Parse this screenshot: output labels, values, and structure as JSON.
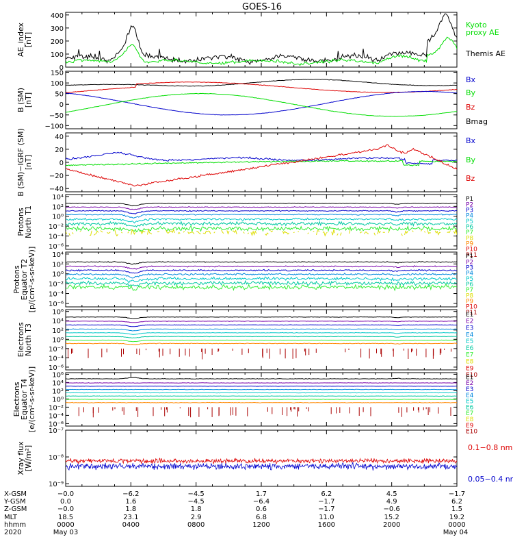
{
  "title": "GOES-16",
  "colors": {
    "black": "#000000",
    "green": "#00dd00",
    "blue": "#0000cc",
    "red": "#dd0000",
    "navy": "#000080",
    "purple": "#7700aa",
    "cyan": "#00c8c8",
    "teal": "#00c8a0",
    "lime": "#33ee33",
    "yellow": "#dddd00",
    "orange": "#ff8800",
    "darkred": "#aa0000"
  },
  "chart_data": [
    {
      "type": "line",
      "ylabel": "AE_index\n[nT]",
      "yticks": [
        0,
        100,
        200,
        300,
        400
      ],
      "ytick_labels": [
        "0",
        "100",
        "200",
        "300",
        "400"
      ],
      "ylim": [
        0,
        420
      ],
      "log": false,
      "legend": [
        {
          "text": "Kyoto\nproxy AE",
          "color": "#00dd00"
        },
        {
          "text": "Themis AE",
          "color": "#000000"
        }
      ],
      "series": [
        {
          "name": "Themis AE",
          "color": "#000000",
          "shape": "ae_themis"
        },
        {
          "name": "Kyoto proxy AE",
          "color": "#00dd00",
          "shape": "ae_kyoto"
        }
      ]
    },
    {
      "type": "line",
      "ylabel": "B (SM)\n[nT]",
      "yticks": [
        -100,
        -50,
        0,
        50,
        100,
        150
      ],
      "ytick_labels": [
        "−100",
        "−50",
        "0",
        "50",
        "100",
        "150"
      ],
      "ylim": [
        -115,
        155
      ],
      "log": false,
      "legend": [
        {
          "text": "Bx",
          "color": "#0000cc"
        },
        {
          "text": "By",
          "color": "#00dd00"
        },
        {
          "text": "Bz",
          "color": "#dd0000"
        },
        {
          "text": "Bmag",
          "color": "#000000"
        }
      ],
      "series": [
        {
          "name": "Bmag",
          "color": "#000000",
          "shape": "b_mag"
        },
        {
          "name": "Bz",
          "color": "#dd0000",
          "shape": "b_z"
        },
        {
          "name": "Bx",
          "color": "#0000cc",
          "shape": "b_x"
        },
        {
          "name": "By",
          "color": "#00dd00",
          "shape": "b_y"
        }
      ]
    },
    {
      "type": "line",
      "ylabel": "B (SM)−IGRF (SM)\n[nT]",
      "yticks": [
        -40,
        -20,
        0,
        20,
        40
      ],
      "ytick_labels": [
        "−40",
        "−20",
        "0",
        "20",
        "40"
      ],
      "ylim": [
        -45,
        45
      ],
      "log": false,
      "legend": [
        {
          "text": "Bx",
          "color": "#0000cc"
        },
        {
          "text": "By",
          "color": "#00dd00"
        },
        {
          "text": "Bz",
          "color": "#dd0000"
        }
      ],
      "series": [
        {
          "name": "Bx",
          "color": "#0000cc",
          "shape": "d_x"
        },
        {
          "name": "By",
          "color": "#00dd00",
          "shape": "d_y"
        },
        {
          "name": "Bz",
          "color": "#dd0000",
          "shape": "d_z"
        }
      ]
    },
    {
      "type": "line",
      "ylabel": "Protons\nNorth T1",
      "yticks": [
        -6,
        -4,
        -2,
        0,
        2,
        4
      ],
      "ytick_labels": [
        "10⁻⁶",
        "10⁻⁴",
        "10⁻²",
        "10⁰",
        "10²",
        "10⁴"
      ],
      "ylim": [
        -6.7,
        4.4
      ],
      "log": true,
      "legend": [
        {
          "text": "P1",
          "color": "#000000"
        },
        {
          "text": "P2",
          "color": "#7700aa"
        },
        {
          "text": "P3",
          "color": "#0000cc"
        },
        {
          "text": "P4",
          "color": "#0088dd"
        },
        {
          "text": "P5",
          "color": "#00c8c8"
        },
        {
          "text": "P6",
          "color": "#00c8a0"
        },
        {
          "text": "P7",
          "color": "#33ee33"
        },
        {
          "text": "P8",
          "color": "#dddd00"
        },
        {
          "text": "P9",
          "color": "#ff8800"
        },
        {
          "text": "P10",
          "color": "#dd0000"
        },
        {
          "text": "P11",
          "color": "#aa0000"
        }
      ],
      "series": [
        {
          "name": "P1",
          "color": "#000000",
          "base": 2.6,
          "noise": 0.05,
          "dip": 0.45
        },
        {
          "name": "P2",
          "color": "#7700aa",
          "base": 1.85,
          "noise": 0.07,
          "dip": 0.5
        },
        {
          "name": "P3",
          "color": "#0000cc",
          "base": 1.1,
          "noise": 0.08,
          "dip": 0.55
        },
        {
          "name": "P4",
          "color": "#0088dd",
          "base": 0.35,
          "noise": 0.1,
          "dip": 0.6
        },
        {
          "name": "P5",
          "color": "#00c8c8",
          "base": -0.6,
          "noise": 0.18,
          "dip": 0.6
        },
        {
          "name": "P6",
          "color": "#00c8a0",
          "base": -1.5,
          "noise": 0.3,
          "dip": 0.5
        },
        {
          "name": "P7",
          "color": "#33ee33",
          "base": -2.5,
          "noise": 0.4,
          "dip": 0.3
        },
        {
          "name": "P8",
          "color": "#dddd00",
          "base": -3.3,
          "noise": 0.5,
          "dip": 0.0,
          "gappy": true
        }
      ]
    },
    {
      "type": "line",
      "ylabel": "Protons\nEquator T2\n[p/(cm²-s-sr-keV)]",
      "yticks": [
        -6,
        -4,
        -2,
        0,
        2,
        4
      ],
      "ytick_labels": [
        "10⁻⁶",
        "10⁻⁴",
        "10⁻²",
        "10⁰",
        "10²",
        "10⁴"
      ],
      "ylim": [
        -6.7,
        4.4
      ],
      "log": true,
      "legend": [
        {
          "text": "P1",
          "color": "#000000"
        },
        {
          "text": "P2",
          "color": "#7700aa"
        },
        {
          "text": "P3",
          "color": "#0000cc"
        },
        {
          "text": "P4",
          "color": "#0088dd"
        },
        {
          "text": "P5",
          "color": "#00c8c8"
        },
        {
          "text": "P6",
          "color": "#00c8a0"
        },
        {
          "text": "P7",
          "color": "#33ee33"
        },
        {
          "text": "P8",
          "color": "#dddd00"
        },
        {
          "text": "P9",
          "color": "#ff8800"
        },
        {
          "text": "P10",
          "color": "#dd0000"
        },
        {
          "text": "P11",
          "color": "#aa0000"
        }
      ],
      "series": [
        {
          "name": "P1",
          "color": "#000000",
          "base": 2.4,
          "noise": 0.08,
          "dip": 0.4
        },
        {
          "name": "P2",
          "color": "#7700aa",
          "base": 1.5,
          "noise": 0.1,
          "dip": 0.5
        },
        {
          "name": "P3",
          "color": "#0000cc",
          "base": 0.7,
          "noise": 0.12,
          "dip": 0.55
        },
        {
          "name": "P4",
          "color": "#0088dd",
          "base": -0.1,
          "noise": 0.15,
          "dip": 0.6
        },
        {
          "name": "P5",
          "color": "#00c8c8",
          "base": -1.0,
          "noise": 0.25,
          "dip": 0.6
        },
        {
          "name": "P6",
          "color": "#00c8a0",
          "base": -1.9,
          "noise": 0.3,
          "dip": 0.5
        },
        {
          "name": "P7",
          "color": "#33ee33",
          "base": -2.7,
          "noise": 0.4,
          "dip": 0.3
        }
      ]
    },
    {
      "type": "line",
      "ylabel": "Electrons\nNorth T3",
      "yticks": [
        -6,
        -4,
        -2,
        0,
        2,
        4,
        6
      ],
      "ytick_labels": [
        "10⁻⁶",
        "10⁻⁴",
        "10⁻²",
        "10⁰",
        "10²",
        "10⁴",
        "10⁶"
      ],
      "ylim": [
        -6.6,
        6.4
      ],
      "log": true,
      "legend": [
        {
          "text": "E1",
          "color": "#000000"
        },
        {
          "text": "E2",
          "color": "#7700aa"
        },
        {
          "text": "E3",
          "color": "#0000cc"
        },
        {
          "text": "E4",
          "color": "#0088dd"
        },
        {
          "text": "E5",
          "color": "#00c8c8"
        },
        {
          "text": "E6",
          "color": "#00c8a0"
        },
        {
          "text": "E7",
          "color": "#33ee33"
        },
        {
          "text": "E8",
          "color": "#dddd00"
        },
        {
          "text": "E9",
          "color": "#dd0000"
        },
        {
          "text": "E10",
          "color": "#aa0000"
        }
      ],
      "series": [
        {
          "name": "E1",
          "color": "#000000",
          "base": 4.8,
          "noise": 0.04,
          "dip": 0.3
        },
        {
          "name": "E2",
          "color": "#7700aa",
          "base": 3.9,
          "noise": 0.04,
          "dip": 0.3
        },
        {
          "name": "E3",
          "color": "#0000cc",
          "base": 3.1,
          "noise": 0.04,
          "dip": 0.35
        },
        {
          "name": "E4",
          "color": "#0088dd",
          "base": 2.2,
          "noise": 0.04,
          "dip": 0.35
        },
        {
          "name": "E5",
          "color": "#00c8c8",
          "base": 1.4,
          "noise": 0.04,
          "dip": 0.35
        },
        {
          "name": "E6",
          "color": "#00c8a0",
          "base": 0.6,
          "noise": 0.04,
          "dip": 0.3
        },
        {
          "name": "E7",
          "color": "#33ee33",
          "base": -0.2,
          "noise": 0.04,
          "dip": 0.3
        },
        {
          "name": "E8",
          "color": "#ff8800",
          "base": -0.9,
          "noise": 0.05,
          "dip": 0.25
        },
        {
          "name": "E9",
          "color": "#aa0000",
          "base": -2.3,
          "noise": 0.0,
          "dip": 0.0,
          "spikes": true
        }
      ]
    },
    {
      "type": "line",
      "ylabel": "Electrons\nEquator T4\n[e/(cm²-s-sr-keV)]",
      "yticks": [
        -6,
        -4,
        -2,
        0,
        2,
        4,
        6
      ],
      "ytick_labels": [
        "10⁻⁶",
        "10⁻⁴",
        "10⁻²",
        "10⁰",
        "10²",
        "10⁴",
        "10⁶"
      ],
      "ylim": [
        -6.6,
        6.4
      ],
      "log": true,
      "legend": [
        {
          "text": "E1",
          "color": "#000000"
        },
        {
          "text": "E2",
          "color": "#7700aa"
        },
        {
          "text": "E3",
          "color": "#0000cc"
        },
        {
          "text": "E4",
          "color": "#0088dd"
        },
        {
          "text": "E5",
          "color": "#00c8c8"
        },
        {
          "text": "E6",
          "color": "#00c8a0"
        },
        {
          "text": "E7",
          "color": "#33ee33"
        },
        {
          "text": "E8",
          "color": "#dddd00"
        },
        {
          "text": "E9",
          "color": "#dd0000"
        },
        {
          "text": "E10",
          "color": "#aa0000"
        }
      ],
      "series": [
        {
          "name": "E1",
          "color": "#000000",
          "base": 4.9,
          "noise": 0.05,
          "dip": -0.3
        },
        {
          "name": "E2",
          "color": "#7700aa",
          "base": 3.9,
          "noise": 0.04,
          "dip": 0.0
        },
        {
          "name": "E3",
          "color": "#0000cc",
          "base": 3.1,
          "noise": 0.04,
          "dip": 0.0
        },
        {
          "name": "E4",
          "color": "#0088dd",
          "base": 2.3,
          "noise": 0.04,
          "dip": 0.0
        },
        {
          "name": "E5",
          "color": "#00c8c8",
          "base": 1.5,
          "noise": 0.04,
          "dip": 0.0
        },
        {
          "name": "E6",
          "color": "#00c8a0",
          "base": 0.7,
          "noise": 0.04,
          "dip": 0.0
        },
        {
          "name": "E7",
          "color": "#33ee33",
          "base": -0.1,
          "noise": 0.04,
          "dip": 0.0
        },
        {
          "name": "E8",
          "color": "#ff8800",
          "base": -0.9,
          "noise": 0.05,
          "dip": 0.0
        },
        {
          "name": "E9",
          "color": "#aa0000",
          "base": -2.3,
          "noise": 0.0,
          "dip": 0.0,
          "spikes": true
        }
      ]
    },
    {
      "type": "line",
      "ylabel": "Xray flux\n[W/m²]",
      "yticks": [
        -9,
        -8,
        -7
      ],
      "ytick_labels": [
        "10⁻⁹",
        "10⁻⁸",
        "10⁻⁷"
      ],
      "ylim": [
        -9.1,
        -7.0
      ],
      "log": true,
      "legend": [
        {
          "text": "0.1−0.8 nm",
          "color": "#dd0000"
        },
        {
          "text": "0.05−0.4 nm",
          "color": "#0000cc"
        }
      ],
      "series": [
        {
          "name": "0.05−0.4 nm",
          "color": "#0000cc",
          "base": -8.35,
          "noise": 0.1,
          "dense": true
        },
        {
          "name": "0.1−0.8 nm",
          "color": "#dd0000",
          "base": -8.15,
          "noise": 0.07,
          "dense": true
        }
      ]
    }
  ],
  "time_axis": {
    "row_labels": [
      "X-GSM",
      "Y-GSM",
      "Z-GSM",
      "MLT",
      "hhmm",
      "2020"
    ],
    "columns": [
      {
        "t": 0,
        "values": [
          "−0.0",
          "0.0",
          "−0.0",
          "18.5",
          "0000",
          "May 03"
        ]
      },
      {
        "t": 240,
        "values": [
          "−6.2",
          "1.6",
          "1.8",
          "23.1",
          "0400",
          ""
        ]
      },
      {
        "t": 480,
        "values": [
          "−4.5",
          "−4.5",
          "1.8",
          "2.9",
          "0800",
          ""
        ]
      },
      {
        "t": 720,
        "values": [
          "1.7",
          "−6.4",
          "0.6",
          "6.8",
          "1200",
          ""
        ]
      },
      {
        "t": 960,
        "values": [
          "6.2",
          "−1.7",
          "−1.7",
          "11.0",
          "1600",
          ""
        ]
      },
      {
        "t": 1200,
        "values": [
          "4.5",
          "4.9",
          "−0.6",
          "15.2",
          "2000",
          ""
        ]
      },
      {
        "t": 1440,
        "values": [
          "−1.7",
          "6.2",
          "1.5",
          "19.2",
          "0000",
          "May 04"
        ]
      }
    ],
    "xlim_minutes": [
      0,
      1440
    ]
  }
}
